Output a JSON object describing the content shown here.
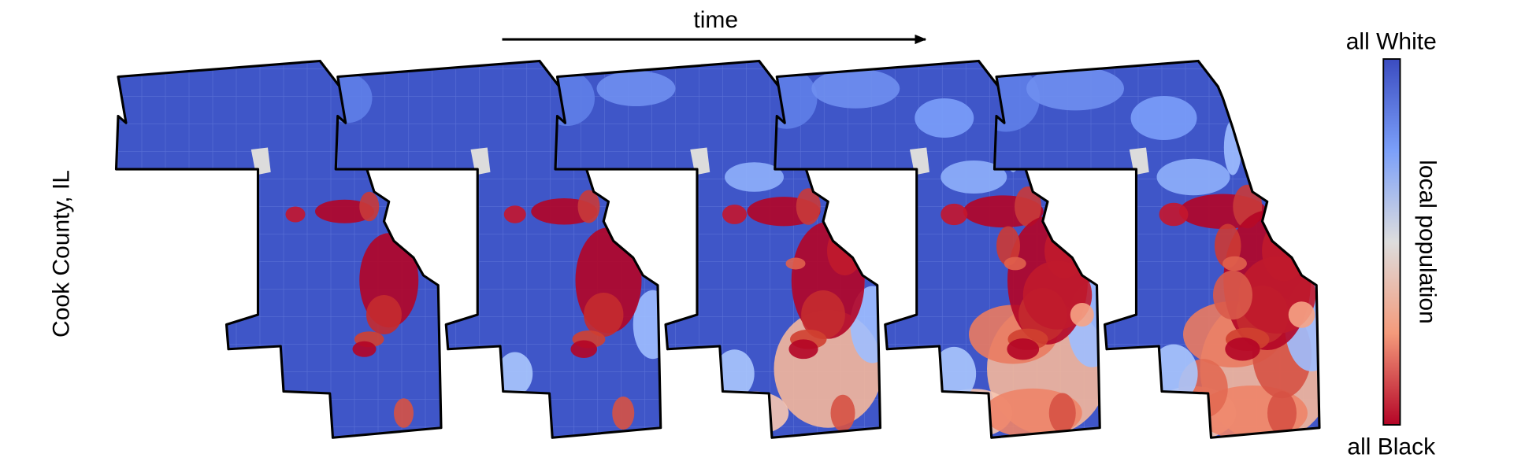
{
  "header": {
    "arrow_label": "time",
    "row_label": "Cook County, IL"
  },
  "legend": {
    "top_label": "all White",
    "axis_label": "local population",
    "bottom_label": "all Black"
  }
}
